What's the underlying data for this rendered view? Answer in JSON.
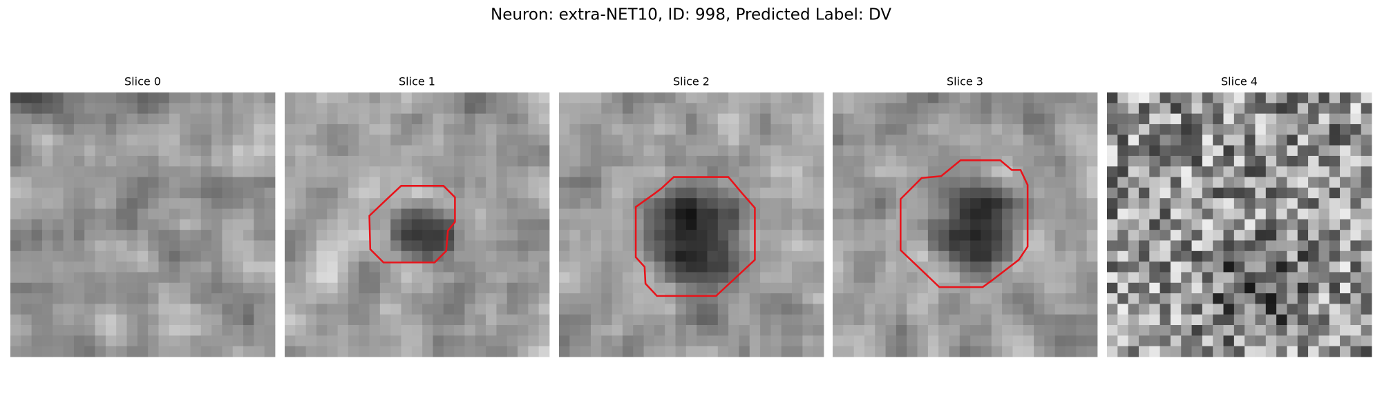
{
  "title": "Neuron: extra-NET10, ID: 998, Predicted Label: DV",
  "panels": [
    {
      "label": "Slice 0"
    },
    {
      "label": "Slice 1"
    },
    {
      "label": "Slice 2"
    },
    {
      "label": "Slice 3"
    },
    {
      "label": "Slice 4"
    }
  ]
}
